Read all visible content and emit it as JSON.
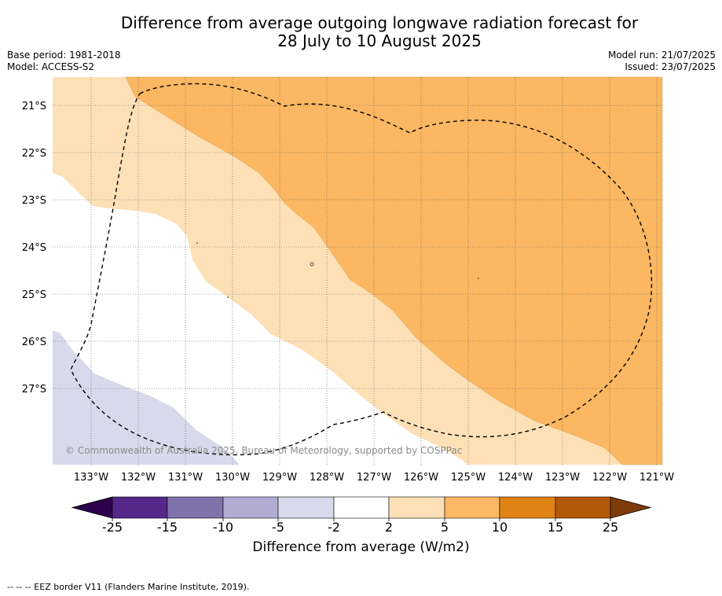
{
  "header": {
    "title_line1": "Difference from average outgoing longwave radiation forecast for",
    "title_line2": "28 July to 10 August 2025",
    "base_period": "Base period: 1981-2018",
    "model": "Model: ACCESS-S2",
    "model_run": "Model run: 21/07/2025",
    "issued": "Issued: 23/07/2025"
  },
  "map": {
    "lat_labels": [
      "21°S",
      "22°S",
      "23°S",
      "24°S",
      "25°S",
      "26°S",
      "27°S"
    ],
    "lon_labels": [
      "133°W",
      "132°W",
      "131°W",
      "130°W",
      "129°W",
      "128°W",
      "127°W",
      "126°W",
      "125°W",
      "124°W",
      "123°W",
      "122°W",
      "121°W"
    ],
    "copyright": "© Commonwealth of Australia 2025, Bureau of Meteorology, supported by COSPPac",
    "fill_colors": {
      "plus_5_to_10": "#fbb761",
      "plus_2_to_5": "#fde0b6",
      "minus_2_to_2": "#ffffff",
      "minus_5_to_minus_2": "#d8d9eb"
    }
  },
  "colorbar": {
    "title": "Difference from average (W/m2)",
    "tick_labels": [
      "-25",
      "-15",
      "-10",
      "-5",
      "-2",
      "2",
      "5",
      "10",
      "15",
      "25"
    ],
    "colors": [
      "#2d004b",
      "#542788",
      "#8073ac",
      "#b2abd2",
      "#d8daeb",
      "#ffffff",
      "#fee0b6",
      "#fdb863",
      "#e08214",
      "#b35806",
      "#7f3b08"
    ]
  },
  "footer": {
    "legend_line": "--  --  -- EEZ border V11 (Flanders Marine Institute, 2019)."
  }
}
